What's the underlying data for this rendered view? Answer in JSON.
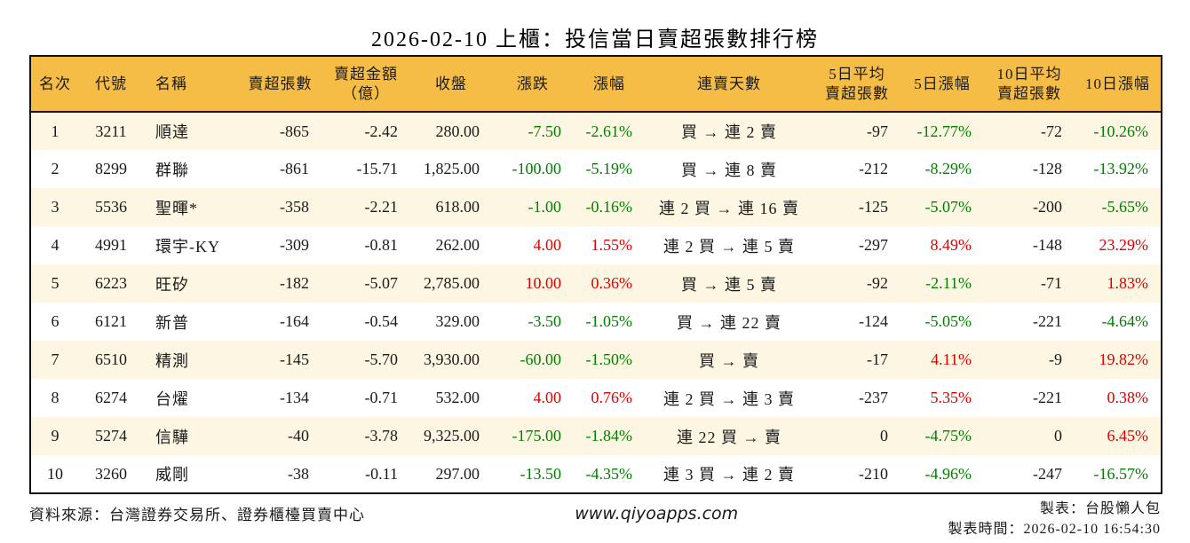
{
  "title": "2026-02-10 上櫃：投信當日賣超張數排行榜",
  "colors": {
    "header_bg": "#F5BD45",
    "row_alt_bg": "#FDF6E3",
    "up_red": "#DD0000",
    "down_green": "#007F00",
    "border": "#111111"
  },
  "table": {
    "columns": [
      {
        "key": "rank",
        "label": "名次",
        "align": "center"
      },
      {
        "key": "code",
        "label": "代號",
        "align": "center"
      },
      {
        "key": "name",
        "label": "名稱",
        "align": "left"
      },
      {
        "key": "net_sell",
        "label": "賣超張數",
        "align": "right"
      },
      {
        "key": "amount",
        "label": "賣超金額\n（億）",
        "align": "right"
      },
      {
        "key": "close",
        "label": "收盤",
        "align": "right"
      },
      {
        "key": "change",
        "label": "漲跌",
        "align": "right",
        "dir_key": "change_dir"
      },
      {
        "key": "change_pct",
        "label": "漲幅",
        "align": "right",
        "dir_key": "change_dir"
      },
      {
        "key": "streak",
        "label": "連賣天數",
        "align": "center"
      },
      {
        "key": "avg5",
        "label": "5日平均\n賣超張數",
        "align": "right"
      },
      {
        "key": "pct5",
        "label": "5日漲幅",
        "align": "right",
        "dir_key": "pct5_dir"
      },
      {
        "key": "avg10",
        "label": "10日平均\n賣超張數",
        "align": "right"
      },
      {
        "key": "pct10",
        "label": "10日漲幅",
        "align": "right",
        "dir_key": "pct10_dir"
      }
    ],
    "rows": [
      {
        "rank": "1",
        "code": "3211",
        "name": "順達",
        "net_sell": "-865",
        "amount": "-2.42",
        "close": "280.00",
        "change": "-7.50",
        "change_pct": "-2.61%",
        "change_dir": "down",
        "streak": "買 → 連 2 賣",
        "avg5": "-97",
        "pct5": "-12.77%",
        "pct5_dir": "down",
        "avg10": "-72",
        "pct10": "-10.26%",
        "pct10_dir": "down"
      },
      {
        "rank": "2",
        "code": "8299",
        "name": "群聯",
        "net_sell": "-861",
        "amount": "-15.71",
        "close": "1,825.00",
        "change": "-100.00",
        "change_pct": "-5.19%",
        "change_dir": "down",
        "streak": "買 → 連 8 賣",
        "avg5": "-212",
        "pct5": "-8.29%",
        "pct5_dir": "down",
        "avg10": "-128",
        "pct10": "-13.92%",
        "pct10_dir": "down"
      },
      {
        "rank": "3",
        "code": "5536",
        "name": "聖暉*",
        "net_sell": "-358",
        "amount": "-2.21",
        "close": "618.00",
        "change": "-1.00",
        "change_pct": "-0.16%",
        "change_dir": "down",
        "streak": "連 2 買 → 連 16 賣",
        "avg5": "-125",
        "pct5": "-5.07%",
        "pct5_dir": "down",
        "avg10": "-200",
        "pct10": "-5.65%",
        "pct10_dir": "down"
      },
      {
        "rank": "4",
        "code": "4991",
        "name": "環宇-KY",
        "net_sell": "-309",
        "amount": "-0.81",
        "close": "262.00",
        "change": "4.00",
        "change_pct": "1.55%",
        "change_dir": "up",
        "streak": "連 2 買 → 連 5 賣",
        "avg5": "-297",
        "pct5": "8.49%",
        "pct5_dir": "up",
        "avg10": "-148",
        "pct10": "23.29%",
        "pct10_dir": "up"
      },
      {
        "rank": "5",
        "code": "6223",
        "name": "旺矽",
        "net_sell": "-182",
        "amount": "-5.07",
        "close": "2,785.00",
        "change": "10.00",
        "change_pct": "0.36%",
        "change_dir": "up",
        "streak": "買 → 連 5 賣",
        "avg5": "-92",
        "pct5": "-2.11%",
        "pct5_dir": "down",
        "avg10": "-71",
        "pct10": "1.83%",
        "pct10_dir": "up"
      },
      {
        "rank": "6",
        "code": "6121",
        "name": "新普",
        "net_sell": "-164",
        "amount": "-0.54",
        "close": "329.00",
        "change": "-3.50",
        "change_pct": "-1.05%",
        "change_dir": "down",
        "streak": "買 → 連 22 賣",
        "avg5": "-124",
        "pct5": "-5.05%",
        "pct5_dir": "down",
        "avg10": "-221",
        "pct10": "-4.64%",
        "pct10_dir": "down"
      },
      {
        "rank": "7",
        "code": "6510",
        "name": "精測",
        "net_sell": "-145",
        "amount": "-5.70",
        "close": "3,930.00",
        "change": "-60.00",
        "change_pct": "-1.50%",
        "change_dir": "down",
        "streak": "買 → 賣",
        "avg5": "-17",
        "pct5": "4.11%",
        "pct5_dir": "up",
        "avg10": "-9",
        "pct10": "19.82%",
        "pct10_dir": "up"
      },
      {
        "rank": "8",
        "code": "6274",
        "name": "台燿",
        "net_sell": "-134",
        "amount": "-0.71",
        "close": "532.00",
        "change": "4.00",
        "change_pct": "0.76%",
        "change_dir": "up",
        "streak": "連 2 買 → 連 3 賣",
        "avg5": "-237",
        "pct5": "5.35%",
        "pct5_dir": "up",
        "avg10": "-221",
        "pct10": "0.38%",
        "pct10_dir": "up"
      },
      {
        "rank": "9",
        "code": "5274",
        "name": "信驊",
        "net_sell": "-40",
        "amount": "-3.78",
        "close": "9,325.00",
        "change": "-175.00",
        "change_pct": "-1.84%",
        "change_dir": "down",
        "streak": "連 22 買 → 賣",
        "avg5": "0",
        "pct5": "-4.75%",
        "pct5_dir": "down",
        "avg10": "0",
        "pct10": "6.45%",
        "pct10_dir": "up"
      },
      {
        "rank": "10",
        "code": "3260",
        "name": "威剛",
        "net_sell": "-38",
        "amount": "-0.11",
        "close": "297.00",
        "change": "-13.50",
        "change_pct": "-4.35%",
        "change_dir": "down",
        "streak": "連 3 買 → 連 2 賣",
        "avg5": "-210",
        "pct5": "-4.96%",
        "pct5_dir": "down",
        "avg10": "-247",
        "pct10": "-16.57%",
        "pct10_dir": "down"
      }
    ]
  },
  "footer": {
    "source": "資料來源：台灣證券交易所、證券櫃檯買賣中心",
    "url": "www.qiyoapps.com",
    "maker": "製表：台股懶人包",
    "made_time": "製表時間：2026-02-10 16:54:30"
  }
}
